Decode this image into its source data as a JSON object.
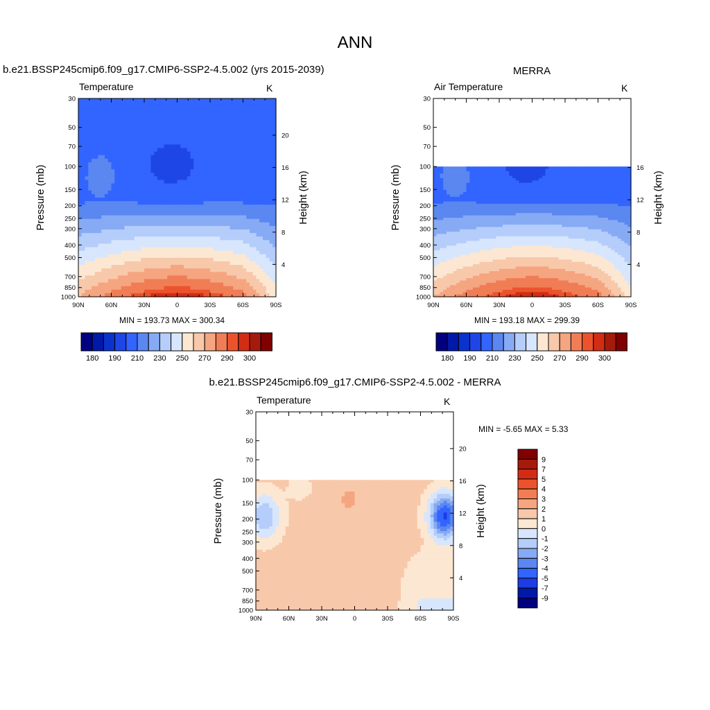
{
  "page_title": "ANN",
  "chart_data": [
    {
      "type": "heatmap",
      "subtitle": "b.e21.BSSP245cmip6.f09_g17.CMIP6-SSP2-4.5.002 (yrs 2015-2039)",
      "variable": "Temperature",
      "units": "K",
      "ylabel": "Pressure (mb)",
      "y2label": "Height (km)",
      "x_ticks": [
        "90N",
        "60N",
        "30N",
        "0",
        "30S",
        "60S",
        "90S"
      ],
      "y_ticks": [
        30,
        50,
        70,
        100,
        150,
        200,
        250,
        300,
        400,
        500,
        700,
        850,
        1000
      ],
      "y2_ticks": [
        4,
        8,
        12,
        16,
        20
      ],
      "ylim": [
        1000,
        30
      ],
      "log_y": true,
      "data_top": 30,
      "min": "193.73",
      "max": "300.34",
      "minmax_text": "MIN = 193.73  MAX = 300.34",
      "levels": [
        180,
        185,
        190,
        200,
        210,
        220,
        230,
        240,
        250,
        260,
        270,
        280,
        290,
        295,
        300
      ],
      "colorbar_labels": [
        "180",
        "190",
        "210",
        "230",
        "250",
        "270",
        "290",
        "300"
      ]
    },
    {
      "type": "heatmap",
      "subtitle": "MERRA",
      "variable": "Air Temperature",
      "units": "K",
      "ylabel": "Pressure (mb)",
      "y2label": "Height (km)",
      "x_ticks": [
        "90N",
        "60N",
        "30N",
        "0",
        "30S",
        "60S",
        "90S"
      ],
      "y_ticks": [
        30,
        50,
        70,
        100,
        150,
        200,
        250,
        300,
        400,
        500,
        700,
        850,
        1000
      ],
      "y2_ticks": [
        4,
        8,
        12,
        16
      ],
      "ylim": [
        1000,
        30
      ],
      "log_y": true,
      "data_top": 100,
      "min": "193.18",
      "max": "299.39",
      "minmax_text": "MIN = 193.18  MAX = 299.39",
      "levels": [
        180,
        185,
        190,
        200,
        210,
        220,
        230,
        240,
        250,
        260,
        270,
        280,
        290,
        295,
        300
      ],
      "colorbar_labels": [
        "180",
        "190",
        "210",
        "230",
        "250",
        "270",
        "290",
        "300"
      ]
    },
    {
      "type": "heatmap",
      "subtitle": "b.e21.BSSP245cmip6.f09_g17.CMIP6-SSP2-4.5.002 - MERRA",
      "variable": "Temperature",
      "units": "K",
      "ylabel": "Pressure (mb)",
      "y2label": "Height (km)",
      "x_ticks": [
        "90N",
        "60N",
        "30N",
        "0",
        "30S",
        "60S",
        "90S"
      ],
      "y_ticks": [
        30,
        50,
        70,
        100,
        150,
        200,
        250,
        300,
        400,
        500,
        700,
        850,
        1000
      ],
      "y2_ticks": [
        4,
        8,
        12,
        16,
        20
      ],
      "ylim": [
        1000,
        30
      ],
      "log_y": true,
      "data_top": 100,
      "min": "-5.65",
      "max": "5.33",
      "minmax_text": "MIN =  -5.65  MAX =   5.33",
      "levels": [
        -9,
        -7,
        -5,
        -4,
        -3,
        -2,
        -1,
        0,
        1,
        2,
        3,
        4,
        5,
        7,
        9
      ],
      "colorbar_labels": [
        "9",
        "7",
        "5",
        "4",
        "3",
        "2",
        "1",
        "0",
        "-1",
        "-2",
        "-3",
        "-4",
        "-5",
        "-7",
        "-9"
      ]
    }
  ],
  "colors": {
    "temp_scale": [
      "#000080",
      "#0019a8",
      "#0a32cc",
      "#1e46e6",
      "#3264ff",
      "#5a87f0",
      "#87aaf5",
      "#b4cdfa",
      "#d7e6fc",
      "#fce7d2",
      "#f8c8aa",
      "#f5a580",
      "#f07d55",
      "#ec532d",
      "#d22d14",
      "#a51a0a",
      "#800000"
    ],
    "diff_scale": [
      "#000080",
      "#0019a8",
      "#1e3ce6",
      "#3264ff",
      "#5a87f0",
      "#87aaf5",
      "#b4cdfa",
      "#d7e6fc",
      "#fce7d2",
      "#f8c8aa",
      "#f5a580",
      "#f07d55",
      "#ec532d",
      "#d22d14",
      "#a51a0a",
      "#800000"
    ]
  }
}
